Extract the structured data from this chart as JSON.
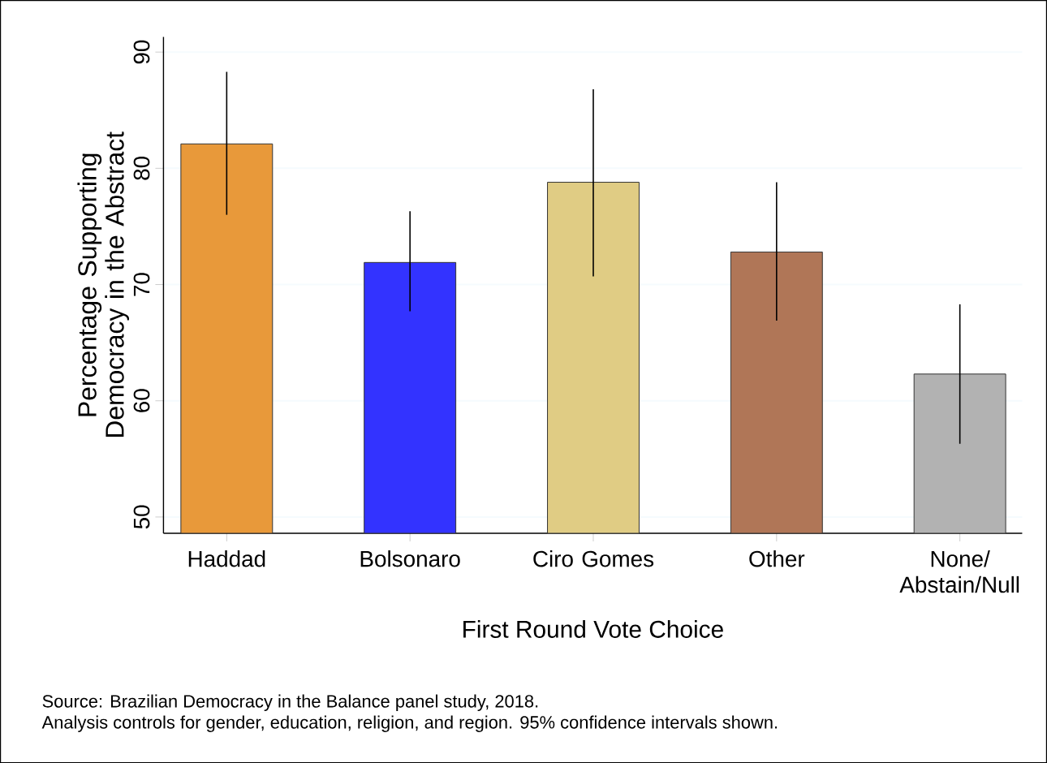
{
  "chart_data": {
    "type": "bar",
    "xlabel": "First Round Vote Choice",
    "ylabel": "Percentage Supporting Democracy in the Abstract",
    "categories": [
      "Haddad",
      "Bolsonaro",
      "Ciro Gomes",
      "Other",
      "None/ Abstain/Null"
    ],
    "values": [
      82.1,
      71.9,
      78.8,
      72.8,
      62.3
    ],
    "colors": [
      "#e8993a",
      "#3333ff",
      "#e0cc84",
      "#b07657",
      "#b2b2b2"
    ],
    "errors": [
      [
        76.0,
        88.3
      ],
      [
        67.7,
        76.3
      ],
      [
        70.7,
        86.8
      ],
      [
        66.9,
        78.8
      ],
      [
        56.3,
        68.3
      ]
    ],
    "ylim": [
      48.6,
      91.3
    ],
    "yticks": [
      50,
      60,
      70,
      80,
      90
    ],
    "grid": "y",
    "annotations": [
      "Source: Brazilian Democracy in the Balance panel study, 2018.",
      "Analysis controls for gender, education, religion, and region. 95% confidence intervals shown."
    ]
  }
}
